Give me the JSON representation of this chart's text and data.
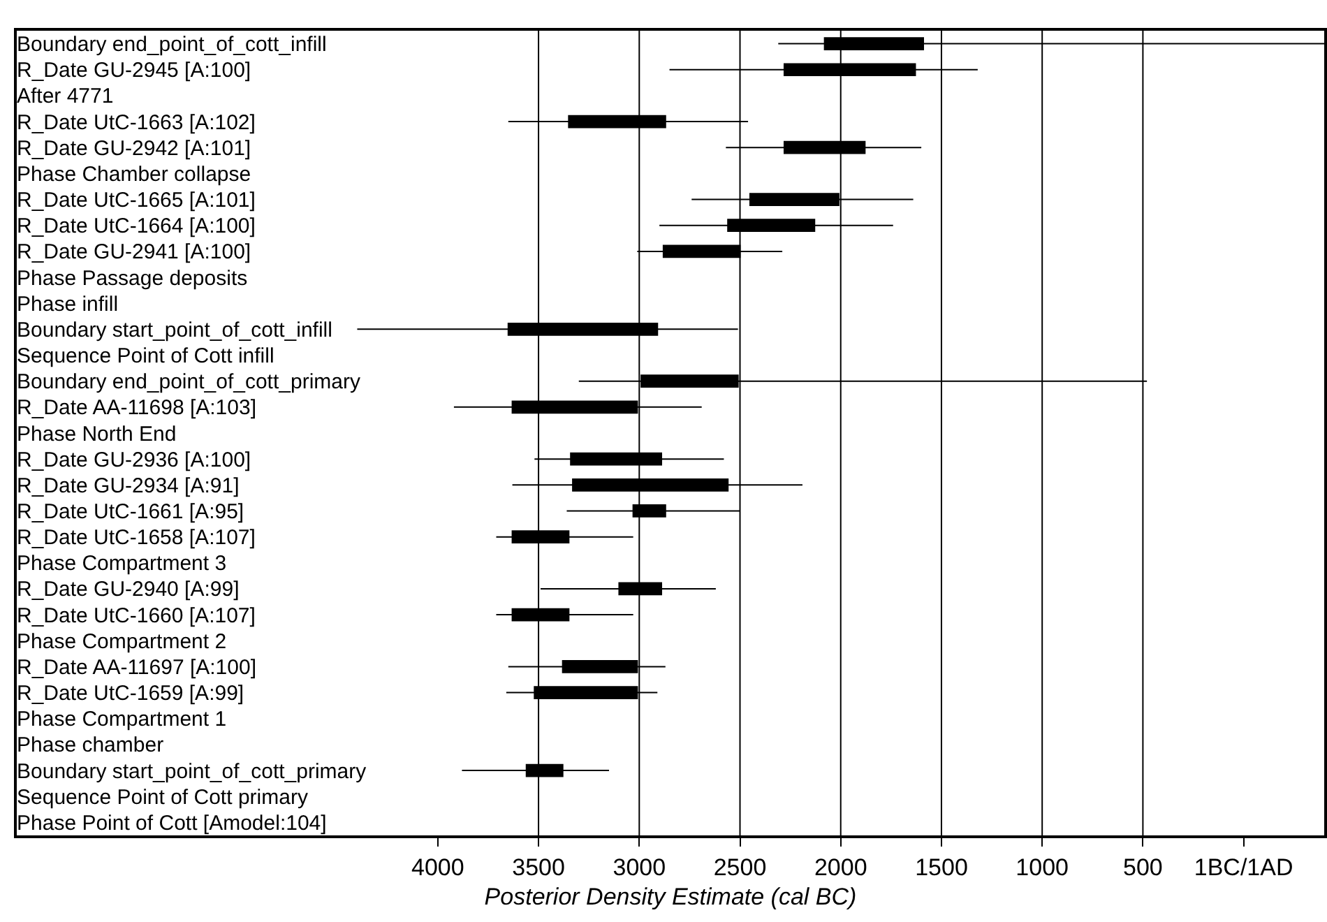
{
  "chart_data": {
    "type": "box",
    "orientation": "horizontal",
    "color": "#000000",
    "xlabel": "Posterior Density Estimate (cal BC)",
    "categories": [
      "Boundary end_point_of_cott_infill",
      "R_Date GU-2945 [A:100]",
      "After 4771",
      "R_Date UtC-1663 [A:102]",
      "R_Date GU-2942 [A:101]",
      "Phase Chamber collapse",
      "R_Date UtC-1665 [A:101]",
      "R_Date UtC-1664 [A:100]",
      "R_Date GU-2941 [A:100]",
      "Phase Passage deposits",
      "Phase infill",
      "Boundary start_point_of_cott_infill",
      "Sequence Point of Cott infill",
      "Boundary end_point_of_cott_primary",
      "R_Date AA-11698 [A:103]",
      "Phase North End",
      "R_Date GU-2936 [A:100]",
      "R_Date GU-2934 [A:91]",
      "R_Date UtC-1661 [A:95]",
      "R_Date UtC-1658 [A:107]",
      "Phase Compartment 3",
      "R_Date GU-2940 [A:99]",
      "R_Date UtC-1660 [A:107]",
      "Phase Compartment 2",
      "R_Date AA-11697 [A:100]",
      "R_Date UtC-1659 [A:99]",
      "Phase Compartment 1",
      "Phase chamber",
      "Boundary start_point_of_cott_primary",
      "Sequence Point of Cott primary",
      "Phase Point of Cott [Amodel:104]"
    ],
    "boxes": [
      {
        "low": -400,
        "q1": 1590,
        "median": 1880,
        "q3": 2080,
        "high": 2310
      },
      {
        "low": 1320,
        "q1": 1630,
        "median": 2010,
        "q3": 2280,
        "high": 2850
      },
      null,
      {
        "low": 2460,
        "q1": 2870,
        "median": 3050,
        "q3": 3350,
        "high": 3650
      },
      {
        "low": 1600,
        "q1": 1880,
        "median": 2070,
        "q3": 2280,
        "high": 2570
      },
      null,
      {
        "low": 1640,
        "q1": 2010,
        "median": 2190,
        "q3": 2450,
        "high": 2740
      },
      {
        "low": 1740,
        "q1": 2130,
        "median": 2430,
        "q3": 2560,
        "high": 2900
      },
      {
        "low": 2290,
        "q1": 2500,
        "median": 2750,
        "q3": 2880,
        "high": 3010
      },
      null,
      null,
      {
        "low": 2510,
        "q1": 2910,
        "median": 3060,
        "q3": 3650,
        "high": 4400
      },
      null,
      {
        "low": 480,
        "q1": 2510,
        "median": 2870,
        "q3": 2990,
        "high": 3300
      },
      {
        "low": 2690,
        "q1": 3010,
        "median": 3300,
        "q3": 3630,
        "high": 3920
      },
      null,
      {
        "low": 2580,
        "q1": 2890,
        "median": 2990,
        "q3": 3340,
        "high": 3520
      },
      {
        "low": 2190,
        "q1": 2560,
        "median": 2970,
        "q3": 3330,
        "high": 3630
      },
      {
        "low": 2500,
        "q1": 2870,
        "median": 2900,
        "q3": 3030,
        "high": 3360
      },
      {
        "low": 3030,
        "q1": 3350,
        "median": 3450,
        "q3": 3630,
        "high": 3710
      },
      null,
      {
        "low": 2620,
        "q1": 2890,
        "median": 2990,
        "q3": 3100,
        "high": 3490
      },
      {
        "low": 3030,
        "q1": 3350,
        "median": 3450,
        "q3": 3630,
        "high": 3710
      },
      null,
      {
        "low": 2870,
        "q1": 3010,
        "median": 3200,
        "q3": 3380,
        "high": 3650
      },
      {
        "low": 2910,
        "q1": 3010,
        "median": 3400,
        "q3": 3520,
        "high": 3660
      },
      null,
      null,
      {
        "low": 3150,
        "q1": 3380,
        "median": 3480,
        "q3": 3560,
        "high": 3880
      },
      null,
      null
    ],
    "xlim": [
      6090,
      -400
    ],
    "xticks": [
      4000,
      3500,
      3000,
      2500,
      2000,
      1500,
      1000,
      500,
      {
        "value": 0,
        "label": "1BC/1AD"
      }
    ],
    "ref_lines": [
      {
        "axis": "x",
        "value": 3500
      },
      {
        "axis": "x",
        "value": 3000
      },
      {
        "axis": "x",
        "value": 2500
      },
      {
        "axis": "x",
        "value": 2000
      },
      {
        "axis": "x",
        "value": 1500
      },
      {
        "axis": "x",
        "value": 1000
      },
      {
        "axis": "x",
        "value": 500
      }
    ]
  }
}
